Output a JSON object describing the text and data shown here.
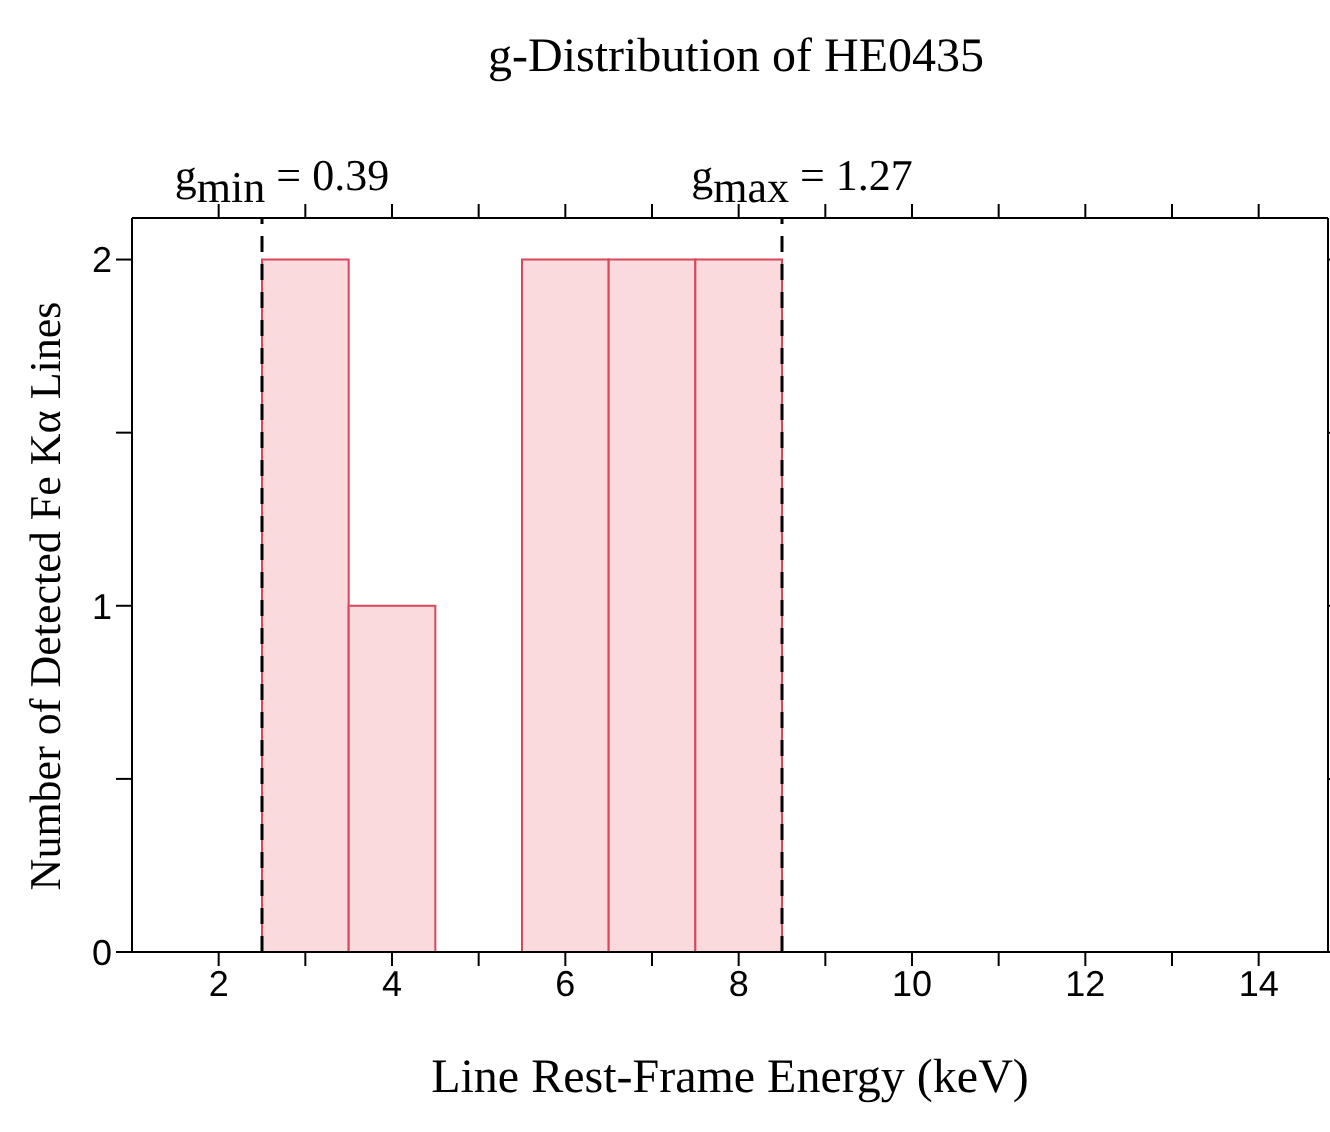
{
  "chart_data": {
    "type": "histogram",
    "title": "g-Distribution of HE0435",
    "xlabel": "Line Rest-Frame Energy (keV)",
    "ylabel": "Number of Detected Fe Kα Lines",
    "bins": [
      2.5,
      3.5,
      4.5,
      5.5,
      6.5,
      7.5,
      8.5
    ],
    "values": [
      2,
      1,
      0,
      2,
      2,
      2
    ],
    "color": "#fadadd",
    "xlim": [
      1,
      14.8
    ],
    "xticks": [
      2,
      {
        "value": 3,
        "label": null
      },
      4,
      {
        "value": 5,
        "label": null
      },
      6,
      {
        "value": 7,
        "label": null
      },
      8,
      {
        "value": 9,
        "label": null
      },
      10,
      {
        "value": 11,
        "label": null
      },
      12,
      {
        "value": 13,
        "label": null
      },
      14
    ],
    "ylim": [
      0,
      2.12
    ],
    "yticks": [
      0,
      {
        "value": 0.5,
        "label": null
      },
      1,
      {
        "value": 1.5,
        "label": null
      },
      2
    ],
    "ref_lines": [
      {
        "axis": "x",
        "value": 2.5,
        "line_style": "dashed",
        "color": "#000000"
      },
      {
        "axis": "x",
        "value": 8.5,
        "line_style": "dashed",
        "color": "#000000"
      }
    ],
    "annotations": [
      "g$_{min}$ = 0.39",
      "g$_{max}$ = 1.27"
    ],
    "grid": false
  }
}
